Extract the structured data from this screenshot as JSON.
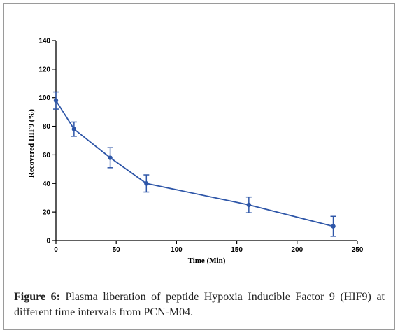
{
  "caption": {
    "label": "Figure 6:",
    "text": " Plasma liberation of peptide Hypoxia Inducible Factor 9 (HIF9) at different time intervals from PCN-M04."
  },
  "chart_data": {
    "type": "line",
    "xlabel": "Time (Min)",
    "ylabel": "Recovered HIF9 (%)",
    "xlim": [
      0,
      250
    ],
    "ylim": [
      0,
      140
    ],
    "xticks": [
      0,
      50,
      100,
      150,
      200,
      250
    ],
    "yticks": [
      0,
      20,
      40,
      60,
      80,
      100,
      120,
      140
    ],
    "grid": false,
    "series": [
      {
        "color": "#2e56a8",
        "x": [
          0,
          15,
          45,
          75,
          160,
          230
        ],
        "y": [
          98,
          78,
          58,
          40,
          25,
          10
        ],
        "error": [
          6,
          5,
          7,
          6,
          5.5,
          7
        ]
      }
    ]
  }
}
